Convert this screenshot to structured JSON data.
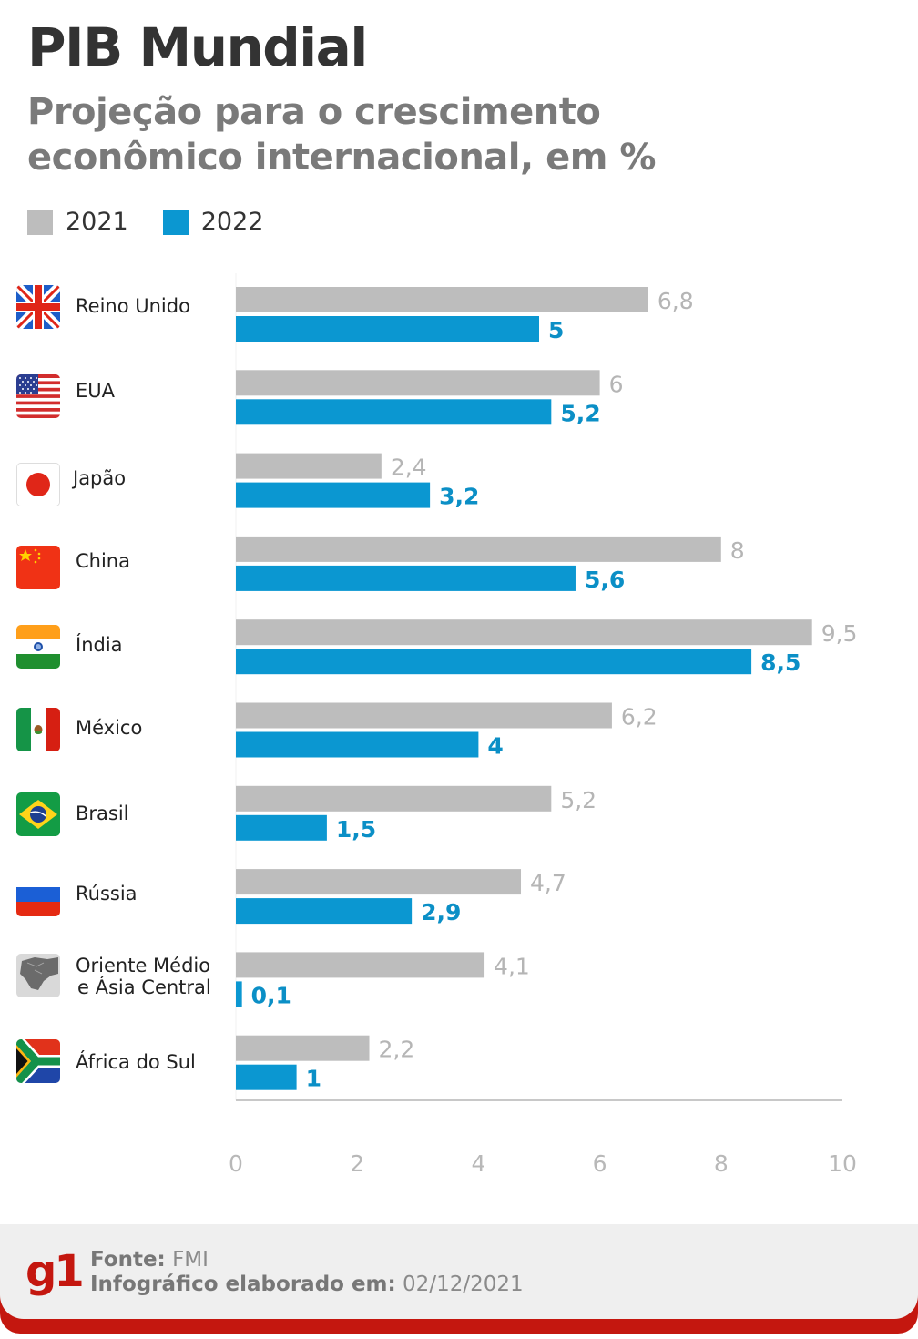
{
  "header": {
    "title": "PIB Mundial",
    "subtitle_line1": "Projeção para o crescimento",
    "subtitle_line2": "econômico internacional, em %"
  },
  "legend": [
    {
      "label": "2021",
      "color": "#bdbdbd"
    },
    {
      "label": "2022",
      "color": "#0b97d1"
    }
  ],
  "countries": [
    {
      "name": "Reino Unido",
      "flag": "uk-flag-icon"
    },
    {
      "name": "EUA",
      "flag": "usa-flag-icon"
    },
    {
      "name": "Japão",
      "flag": "japan-flag-icon"
    },
    {
      "name": "China",
      "flag": "china-flag-icon"
    },
    {
      "name": "Índia",
      "flag": "india-flag-icon"
    },
    {
      "name": "México",
      "flag": "mexico-flag-icon"
    },
    {
      "name": "Brasil",
      "flag": "brazil-flag-icon"
    },
    {
      "name": "Rússia",
      "flag": "russia-flag-icon"
    },
    {
      "name_line1": "Oriente Médio",
      "name_line2": "e Ásia Central",
      "flag": "middle-east-map-icon"
    },
    {
      "name": "África do Sul",
      "flag": "south-africa-flag-icon"
    }
  ],
  "chart_data": {
    "type": "bar",
    "orientation": "horizontal",
    "title": "PIB Mundial",
    "subtitle": "Projeção para o crescimento econômico internacional, em %",
    "categories": [
      "Reino Unido",
      "EUA",
      "Japão",
      "China",
      "Índia",
      "México",
      "Brasil",
      "Rússia",
      "Oriente Médio e Ásia Central",
      "África do Sul"
    ],
    "series": [
      {
        "name": "2021",
        "color": "#bdbdbd",
        "label_color": "#b5b5b5",
        "values": [
          6.8,
          6,
          2.4,
          8,
          9.5,
          6.2,
          5.2,
          4.7,
          4.1,
          2.2
        ],
        "labels": [
          "6,8",
          "6",
          "2,4",
          "8",
          "9,5",
          "6,2",
          "5,2",
          "4,7",
          "4,1",
          "2,2"
        ]
      },
      {
        "name": "2022",
        "color": "#0b97d1",
        "label_color": "#0b8fc6",
        "values": [
          5,
          5.2,
          3.2,
          5.6,
          8.5,
          4,
          1.5,
          2.9,
          0.1,
          1
        ],
        "labels": [
          "5",
          "5,2",
          "3,2",
          "5,6",
          "8,5",
          "4",
          "1,5",
          "2,9",
          "0,1",
          "1"
        ]
      }
    ],
    "xlim": [
      0,
      10
    ],
    "xticks": [
      0,
      2,
      4,
      6,
      8,
      10
    ],
    "xtick_labels": [
      "0",
      "2",
      "4",
      "6",
      "8",
      "10"
    ],
    "xlabel": "",
    "ylabel": "",
    "grid": false,
    "legend_position": "top-left"
  },
  "footer": {
    "logo": "g1",
    "source_label": "Fonte:",
    "source_value": "FMI",
    "date_label": "Infográfico elaborado em:",
    "date_value": "02/12/2021",
    "accent_color": "#c4170f"
  }
}
